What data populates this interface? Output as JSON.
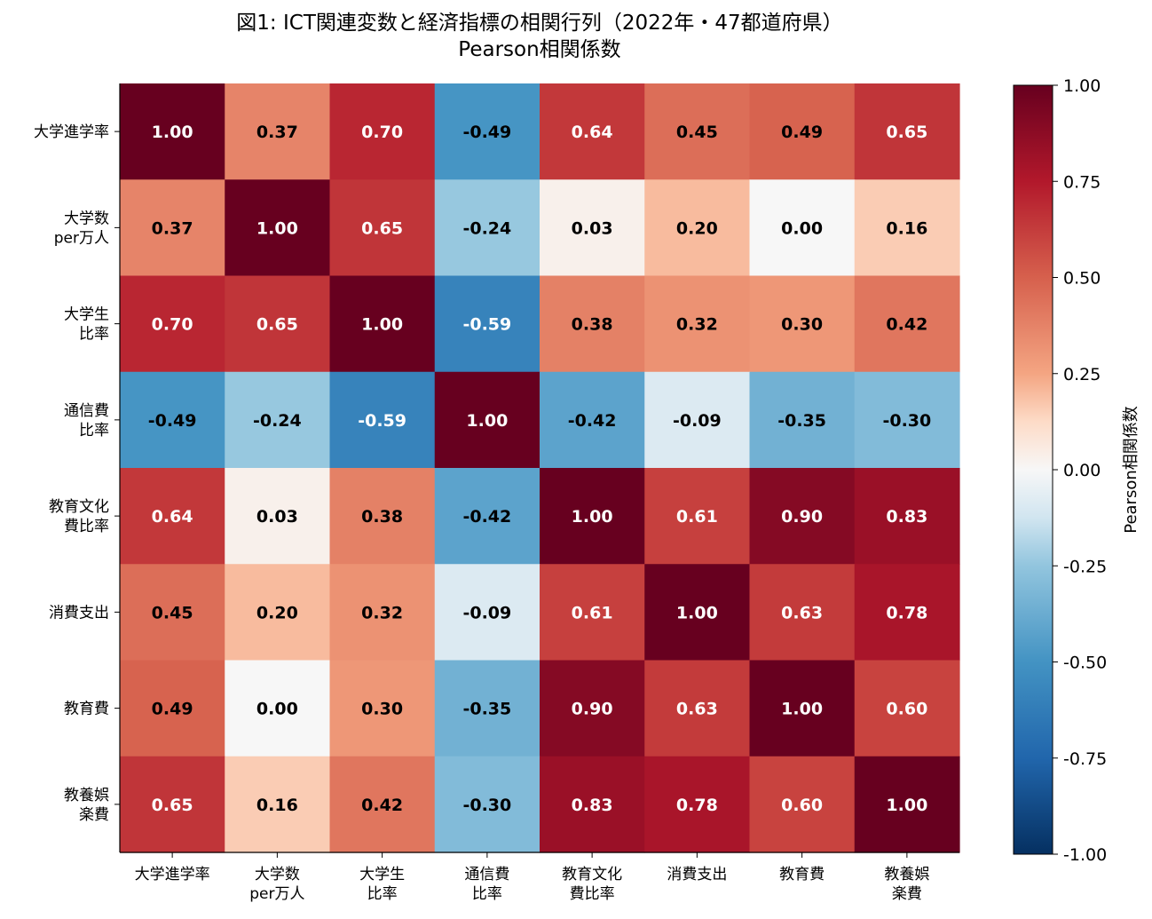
{
  "chart_data": {
    "type": "heatmap",
    "title": "図1: ICT関連変数と経済指標の相関行列（2022年・47都道府県）",
    "subtitle": "Pearson相関係数",
    "row_labels": [
      [
        "大学進学率"
      ],
      [
        "大学数",
        "per万人"
      ],
      [
        "大学生",
        "比率"
      ],
      [
        "通信費",
        "比率"
      ],
      [
        "教育文化",
        "費比率"
      ],
      [
        "消費支出"
      ],
      [
        "教育費"
      ],
      [
        "教養娯",
        "楽費"
      ]
    ],
    "col_labels": [
      [
        "大学進学率"
      ],
      [
        "大学数",
        "per万人"
      ],
      [
        "大学生",
        "比率"
      ],
      [
        "通信費",
        "比率"
      ],
      [
        "教育文化",
        "費比率"
      ],
      [
        "消費支出"
      ],
      [
        "教育費"
      ],
      [
        "教養娯",
        "楽費"
      ]
    ],
    "values": [
      [
        1.0,
        0.37,
        0.7,
        -0.49,
        0.64,
        0.45,
        0.49,
        0.65
      ],
      [
        0.37,
        1.0,
        0.65,
        -0.24,
        0.03,
        0.2,
        0.0,
        0.16
      ],
      [
        0.7,
        0.65,
        1.0,
        -0.59,
        0.38,
        0.32,
        0.3,
        0.42
      ],
      [
        -0.49,
        -0.24,
        -0.59,
        1.0,
        -0.42,
        -0.09,
        -0.35,
        -0.3
      ],
      [
        0.64,
        0.03,
        0.38,
        -0.42,
        1.0,
        0.61,
        0.9,
        0.83
      ],
      [
        0.45,
        0.2,
        0.32,
        -0.09,
        0.61,
        1.0,
        0.63,
        0.78
      ],
      [
        0.49,
        0.0,
        0.3,
        -0.35,
        0.9,
        0.63,
        1.0,
        0.6
      ],
      [
        0.65,
        0.16,
        0.42,
        -0.3,
        0.83,
        0.78,
        0.6,
        1.0
      ]
    ],
    "vmin": -1.0,
    "vmax": 1.0,
    "colormap": "RdBu_r",
    "colorbar": {
      "label": "Pearson相関係数",
      "ticks": [
        "1.00",
        "0.75",
        "0.50",
        "0.25",
        "0.00",
        "-0.25",
        "-0.50",
        "-0.75",
        "-1.00"
      ],
      "tick_values": [
        1.0,
        0.75,
        0.5,
        0.25,
        0.0,
        -0.25,
        -0.5,
        -0.75,
        -1.0
      ]
    },
    "annotations": "cell values shown with 2 decimals",
    "grid": false
  }
}
